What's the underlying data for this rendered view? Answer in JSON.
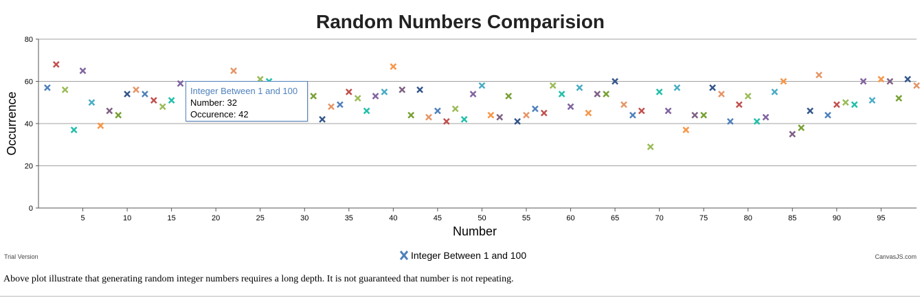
{
  "chart_data": {
    "type": "scatter",
    "title": "Random Numbers Comparision",
    "xlabel": "Number",
    "ylabel": "Occurrence",
    "xlim": [
      0,
      99
    ],
    "ylim": [
      0,
      80
    ],
    "x_ticks": [
      5,
      10,
      15,
      20,
      25,
      30,
      35,
      40,
      45,
      50,
      55,
      60,
      65,
      70,
      75,
      80,
      85,
      90,
      95
    ],
    "y_ticks": [
      0,
      20,
      40,
      60,
      80
    ],
    "grid": "horizontal",
    "legend": "bottom-center",
    "marker": "cross",
    "series": [
      {
        "name": "Integer Between 1 and 100",
        "color": "#4f81bc",
        "x": [
          1,
          2,
          3,
          4,
          5,
          6,
          7,
          8,
          9,
          10,
          11,
          12,
          13,
          14,
          15,
          16,
          17,
          18,
          19,
          20,
          21,
          22,
          23,
          24,
          25,
          26,
          27,
          28,
          29,
          30,
          31,
          32,
          33,
          34,
          35,
          36,
          37,
          38,
          39,
          40,
          41,
          42,
          43,
          44,
          45,
          46,
          47,
          48,
          49,
          50,
          51,
          52,
          53,
          54,
          55,
          56,
          57,
          58,
          59,
          60,
          61,
          62,
          63,
          64,
          65,
          66,
          67,
          68,
          69,
          70,
          71,
          72,
          73,
          74,
          75,
          76,
          77,
          78,
          79,
          80,
          81,
          82,
          83,
          84,
          85,
          86,
          87,
          88,
          89,
          90,
          91,
          92,
          93,
          94,
          95,
          96,
          97,
          98,
          99
        ],
        "y": [
          57,
          68,
          56,
          37,
          65,
          50,
          39,
          46,
          44,
          54,
          56,
          54,
          51,
          48,
          51,
          59,
          48,
          52,
          57,
          53,
          51,
          65,
          55,
          58,
          61,
          60,
          51,
          50,
          47,
          49,
          53,
          42,
          48,
          49,
          55,
          52,
          46,
          53,
          55,
          67,
          56,
          44,
          56,
          43,
          46,
          41,
          47,
          42,
          54,
          58,
          44,
          43,
          53,
          41,
          44,
          47,
          45,
          58,
          54,
          48,
          57,
          45,
          54,
          54,
          60,
          49,
          44,
          46,
          29,
          55,
          46,
          57,
          37,
          44,
          44,
          57,
          54,
          41,
          49,
          53,
          41,
          43,
          55,
          60,
          35,
          38,
          46,
          63,
          44,
          49,
          50,
          49,
          60,
          51,
          61,
          60,
          52,
          61,
          58
        ]
      }
    ],
    "point_colors": [
      "#4f81bc",
      "#c0504e",
      "#9bbb58",
      "#23bfaa",
      "#8064a1",
      "#4aacc5",
      "#f79647",
      "#7f6084",
      "#77a033",
      "#33558b",
      "#e59566",
      "#4f81bc",
      "#c0504e",
      "#9bbb58",
      "#23bfaa",
      "#8064a1",
      "#4aacc5",
      "#f79647",
      "#7f6084",
      "#77a033",
      "#33558b",
      "#e59566",
      "#f79647",
      "#4f81bc",
      "#9bbb58",
      "#23bfaa",
      "#8064a1",
      "#4aacc5",
      "#e59566",
      "#4aacc5",
      "#77a033",
      "#33558b",
      "#e59566",
      "#4f81bc",
      "#c0504e",
      "#9bbb58",
      "#23bfaa",
      "#8064a1",
      "#4aacc5",
      "#f79647",
      "#7f6084",
      "#77a033",
      "#33558b",
      "#e59566",
      "#4f81bc",
      "#c0504e",
      "#9bbb58",
      "#23bfaa",
      "#8064a1",
      "#4aacc5",
      "#f79647",
      "#7f6084",
      "#77a033",
      "#33558b",
      "#e59566",
      "#4f81bc",
      "#c0504e",
      "#9bbb58",
      "#23bfaa",
      "#8064a1",
      "#4aacc5",
      "#f79647",
      "#7f6084",
      "#77a033",
      "#33558b",
      "#e59566",
      "#4f81bc",
      "#c0504e",
      "#9bbb58",
      "#23bfaa",
      "#8064a1",
      "#4aacc5",
      "#f79647",
      "#7f6084",
      "#77a033",
      "#33558b",
      "#e59566",
      "#4f81bc",
      "#c0504e",
      "#9bbb58",
      "#23bfaa",
      "#8064a1",
      "#4aacc5",
      "#f79647",
      "#7f6084",
      "#77a033",
      "#33558b",
      "#e59566",
      "#4f81bc",
      "#c0504e",
      "#9bbb58",
      "#23bfaa",
      "#8064a1",
      "#4aacc5",
      "#f79647",
      "#7f6084",
      "#77a033",
      "#33558b",
      "#e59566"
    ]
  },
  "tooltip": {
    "title": "Integer Between 1 and 100",
    "number_label": "Number: 32",
    "occurrence_label": "Occurence: 42"
  },
  "legend": {
    "label": "Integer Between 1 and 100"
  },
  "footer": {
    "left": "Trial Version",
    "right": "CanvasJS.com"
  },
  "description": "Above plot illustrate that generating random integer numbers requires a long depth. It is not guaranteed that number is not repeating."
}
